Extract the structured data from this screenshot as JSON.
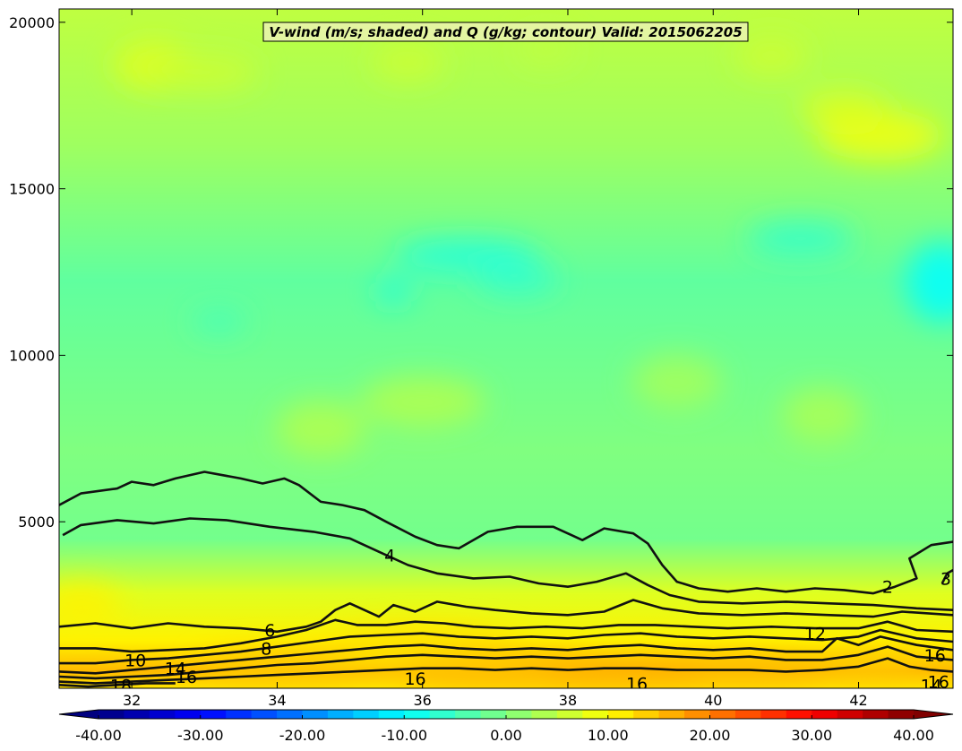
{
  "chart_data": {
    "type": "contourf",
    "title": "V-wind (m/s; shaded) and Q (g/kg; contour) Valid: 2015062205",
    "xlabel": "",
    "ylabel": "",
    "xlim": [
      31.0,
      43.3
    ],
    "ylim": [
      0,
      20400
    ],
    "x_ticks": [
      32,
      34,
      36,
      38,
      40,
      42
    ],
    "x_tick_labels": [
      "32",
      "34",
      "36",
      "38",
      "40",
      "42"
    ],
    "y_ticks": [
      5000,
      10000,
      15000,
      20000
    ],
    "y_tick_labels": [
      "5000",
      "10000",
      "15000",
      "20000"
    ],
    "shading": {
      "variable": "V-wind",
      "units": "m/s",
      "colormap": "jet",
      "range": [
        -40,
        40
      ],
      "step": 2.5,
      "extend": "both",
      "colorbar_ticks": [
        -40,
        -30,
        -20,
        -10,
        0,
        10,
        20,
        30,
        40
      ],
      "colorbar_tick_labels": [
        "-40.00",
        "-30.00",
        "-20.00",
        "-10.00",
        "0.00",
        "10.00",
        "20.00",
        "30.00",
        "40.00"
      ]
    },
    "contours": {
      "variable": "Q",
      "units": "g/kg",
      "lines": [
        {
          "level": 2,
          "points": [
            [
              31.0,
              5500
            ],
            [
              31.3,
              5850
            ],
            [
              31.8,
              6000
            ],
            [
              32.0,
              6200
            ],
            [
              32.3,
              6100
            ],
            [
              32.6,
              6300
            ],
            [
              33.0,
              6500
            ],
            [
              33.5,
              6300
            ],
            [
              33.8,
              6150
            ],
            [
              34.1,
              6300
            ],
            [
              34.3,
              6100
            ],
            [
              34.6,
              5600
            ],
            [
              34.9,
              5500
            ],
            [
              35.2,
              5350
            ],
            [
              35.5,
              5000
            ],
            [
              35.9,
              4550
            ],
            [
              36.2,
              4300
            ],
            [
              36.5,
              4200
            ],
            [
              36.9,
              4700
            ],
            [
              37.3,
              4850
            ],
            [
              37.8,
              4850
            ],
            [
              38.2,
              4450
            ],
            [
              38.5,
              4800
            ],
            [
              38.9,
              4650
            ],
            [
              39.1,
              4350
            ],
            [
              39.3,
              3700
            ],
            [
              39.5,
              3200
            ],
            [
              39.8,
              3000
            ],
            [
              40.2,
              2900
            ],
            [
              40.6,
              3000
            ],
            [
              41.0,
              2900
            ],
            [
              41.4,
              3000
            ],
            [
              41.8,
              2950
            ],
            [
              42.2,
              2850
            ],
            [
              42.5,
              3050
            ],
            [
              42.8,
              3300
            ],
            [
              42.7,
              3900
            ],
            [
              43.0,
              4300
            ],
            [
              43.3,
              4400
            ]
          ]
        },
        {
          "level": 3,
          "points": [
            [
              43.15,
              3150
            ],
            [
              43.22,
              3450
            ],
            [
              43.3,
              3550
            ]
          ]
        },
        {
          "level": 4,
          "points": [
            [
              31.05,
              4600
            ],
            [
              31.3,
              4900
            ],
            [
              31.8,
              5050
            ],
            [
              32.3,
              4950
            ],
            [
              32.8,
              5100
            ],
            [
              33.3,
              5050
            ],
            [
              33.9,
              4850
            ],
            [
              34.5,
              4700
            ],
            [
              35.0,
              4500
            ],
            [
              35.4,
              4100
            ],
            [
              35.8,
              3700
            ],
            [
              36.2,
              3450
            ],
            [
              36.7,
              3300
            ],
            [
              37.2,
              3350
            ],
            [
              37.6,
              3150
            ],
            [
              38.0,
              3050
            ],
            [
              38.4,
              3200
            ],
            [
              38.8,
              3450
            ],
            [
              39.1,
              3100
            ],
            [
              39.4,
              2800
            ],
            [
              39.8,
              2600
            ],
            [
              40.4,
              2550
            ],
            [
              41.0,
              2600
            ],
            [
              41.6,
              2550
            ],
            [
              42.2,
              2500
            ],
            [
              42.8,
              2400
            ],
            [
              43.3,
              2350
            ]
          ]
        },
        {
          "level": 6,
          "points": [
            [
              31.0,
              1850
            ],
            [
              31.5,
              1950
            ],
            [
              32.0,
              1800
            ],
            [
              32.5,
              1950
            ],
            [
              33.0,
              1850
            ],
            [
              33.5,
              1800
            ],
            [
              34.0,
              1700
            ],
            [
              34.4,
              1850
            ],
            [
              34.6,
              2000
            ],
            [
              34.8,
              2350
            ],
            [
              35.0,
              2550
            ],
            [
              35.2,
              2350
            ],
            [
              35.4,
              2150
            ],
            [
              35.6,
              2500
            ],
            [
              35.9,
              2300
            ],
            [
              36.2,
              2600
            ],
            [
              36.6,
              2450
            ],
            [
              37.0,
              2350
            ],
            [
              37.5,
              2250
            ],
            [
              38.0,
              2200
            ],
            [
              38.5,
              2300
            ],
            [
              38.9,
              2650
            ],
            [
              39.3,
              2400
            ],
            [
              39.8,
              2250
            ],
            [
              40.4,
              2200
            ],
            [
              41.0,
              2250
            ],
            [
              41.6,
              2200
            ],
            [
              42.2,
              2150
            ],
            [
              42.6,
              2300
            ],
            [
              43.3,
              2200
            ]
          ]
        },
        {
          "level": 8,
          "points": [
            [
              31.0,
              1200
            ],
            [
              31.5,
              1200
            ],
            [
              32.0,
              1100
            ],
            [
              32.5,
              1150
            ],
            [
              33.0,
              1200
            ],
            [
              33.5,
              1350
            ],
            [
              34.0,
              1550
            ],
            [
              34.4,
              1750
            ],
            [
              34.8,
              2050
            ],
            [
              35.1,
              1900
            ],
            [
              35.5,
              1900
            ],
            [
              35.9,
              2000
            ],
            [
              36.3,
              1950
            ],
            [
              36.7,
              1850
            ],
            [
              37.2,
              1800
            ],
            [
              37.7,
              1850
            ],
            [
              38.2,
              1800
            ],
            [
              38.7,
              1900
            ],
            [
              39.2,
              1900
            ],
            [
              39.7,
              1850
            ],
            [
              40.2,
              1800
            ],
            [
              40.8,
              1850
            ],
            [
              41.4,
              1800
            ],
            [
              42.0,
              1800
            ],
            [
              42.4,
              2000
            ],
            [
              42.8,
              1750
            ],
            [
              43.3,
              1700
            ]
          ]
        },
        {
          "level": 10,
          "points": [
            [
              31.0,
              750
            ],
            [
              31.5,
              750
            ],
            [
              32.0,
              850
            ],
            [
              32.5,
              900
            ],
            [
              33.0,
              1000
            ],
            [
              33.5,
              1100
            ],
            [
              34.0,
              1250
            ],
            [
              34.5,
              1400
            ],
            [
              35.0,
              1550
            ],
            [
              35.5,
              1600
            ],
            [
              36.0,
              1650
            ],
            [
              36.5,
              1550
            ],
            [
              37.0,
              1500
            ],
            [
              37.5,
              1550
            ],
            [
              38.0,
              1500
            ],
            [
              38.5,
              1600
            ],
            [
              39.0,
              1650
            ],
            [
              39.5,
              1550
            ],
            [
              40.0,
              1500
            ],
            [
              40.5,
              1550
            ],
            [
              41.0,
              1500
            ],
            [
              41.5,
              1450
            ],
            [
              42.0,
              1550
            ],
            [
              42.3,
              1750
            ],
            [
              42.8,
              1500
            ],
            [
              43.3,
              1400
            ]
          ]
        },
        {
          "level": 12,
          "points": [
            [
              31.0,
              500
            ],
            [
              31.5,
              450
            ],
            [
              32.0,
              550
            ],
            [
              32.5,
              650
            ],
            [
              33.0,
              750
            ],
            [
              33.5,
              850
            ],
            [
              34.0,
              950
            ],
            [
              34.5,
              1050
            ],
            [
              35.0,
              1150
            ],
            [
              35.5,
              1250
            ],
            [
              36.0,
              1300
            ],
            [
              36.5,
              1200
            ],
            [
              37.0,
              1150
            ],
            [
              37.5,
              1200
            ],
            [
              38.0,
              1150
            ],
            [
              38.5,
              1250
            ],
            [
              39.0,
              1300
            ],
            [
              39.5,
              1200
            ],
            [
              40.0,
              1150
            ],
            [
              40.5,
              1200
            ],
            [
              41.0,
              1100
            ],
            [
              41.5,
              1100
            ],
            [
              41.7,
              1500
            ],
            [
              42.0,
              1300
            ],
            [
              42.3,
              1550
            ],
            [
              42.8,
              1300
            ],
            [
              43.3,
              1150
            ]
          ]
        },
        {
          "level": 14,
          "points": [
            [
              31.0,
              350
            ],
            [
              31.5,
              300
            ],
            [
              32.0,
              350
            ],
            [
              32.5,
              400
            ],
            [
              33.0,
              500
            ],
            [
              33.5,
              600
            ],
            [
              34.0,
              700
            ],
            [
              34.5,
              750
            ],
            [
              35.0,
              850
            ],
            [
              35.5,
              950
            ],
            [
              36.0,
              1000
            ],
            [
              36.5,
              950
            ],
            [
              37.0,
              900
            ],
            [
              37.5,
              950
            ],
            [
              38.0,
              900
            ],
            [
              38.5,
              950
            ],
            [
              39.0,
              1000
            ],
            [
              39.5,
              950
            ],
            [
              40.0,
              900
            ],
            [
              40.5,
              950
            ],
            [
              41.0,
              850
            ],
            [
              41.5,
              850
            ],
            [
              42.0,
              1000
            ],
            [
              42.4,
              1250
            ],
            [
              42.8,
              950
            ],
            [
              43.3,
              850
            ]
          ]
        },
        {
          "level": 16,
          "points": [
            [
              31.0,
              200
            ],
            [
              31.5,
              150
            ],
            [
              32.0,
              200
            ],
            [
              32.5,
              250
            ],
            [
              33.0,
              300
            ],
            [
              33.5,
              350
            ],
            [
              34.0,
              400
            ],
            [
              34.5,
              450
            ],
            [
              35.0,
              500
            ],
            [
              35.5,
              550
            ],
            [
              36.0,
              600
            ],
            [
              36.5,
              600
            ],
            [
              37.0,
              550
            ],
            [
              37.5,
              600
            ],
            [
              38.0,
              550
            ],
            [
              38.5,
              600
            ],
            [
              39.0,
              600
            ],
            [
              39.5,
              550
            ],
            [
              40.0,
              550
            ],
            [
              40.5,
              550
            ],
            [
              41.0,
              500
            ],
            [
              41.5,
              550
            ],
            [
              42.0,
              650
            ],
            [
              42.4,
              900
            ],
            [
              42.7,
              650
            ],
            [
              43.0,
              550
            ],
            [
              43.3,
              500
            ]
          ]
        },
        {
          "level": 18,
          "points": [
            [
              31.0,
              100
            ],
            [
              31.4,
              50
            ],
            [
              31.8,
              100
            ],
            [
              32.2,
              150
            ],
            [
              32.6,
              150
            ]
          ]
        }
      ],
      "labels": [
        {
          "text": "2",
          "x": 42.4,
          "y": 3050
        },
        {
          "text": "3",
          "x": 43.2,
          "y": 3300
        },
        {
          "text": "4",
          "x": 35.55,
          "y": 4000
        },
        {
          "text": "6",
          "x": 33.9,
          "y": 1750
        },
        {
          "text": "8",
          "x": 33.85,
          "y": 1200
        },
        {
          "text": "10",
          "x": 32.05,
          "y": 850
        },
        {
          "text": "12",
          "x": 41.4,
          "y": 1650
        },
        {
          "text": "14",
          "x": 32.6,
          "y": 600
        },
        {
          "text": "16",
          "x": 32.75,
          "y": 350
        },
        {
          "text": "16",
          "x": 35.9,
          "y": 300
        },
        {
          "text": "16",
          "x": 38.95,
          "y": 150
        },
        {
          "text": "16",
          "x": 43.05,
          "y": 1000
        },
        {
          "text": "16",
          "x": 43.1,
          "y": 200
        },
        {
          "text": "18",
          "x": 31.85,
          "y": 100
        },
        {
          "text": "14",
          "x": 43.0,
          "y": 100
        }
      ]
    }
  }
}
